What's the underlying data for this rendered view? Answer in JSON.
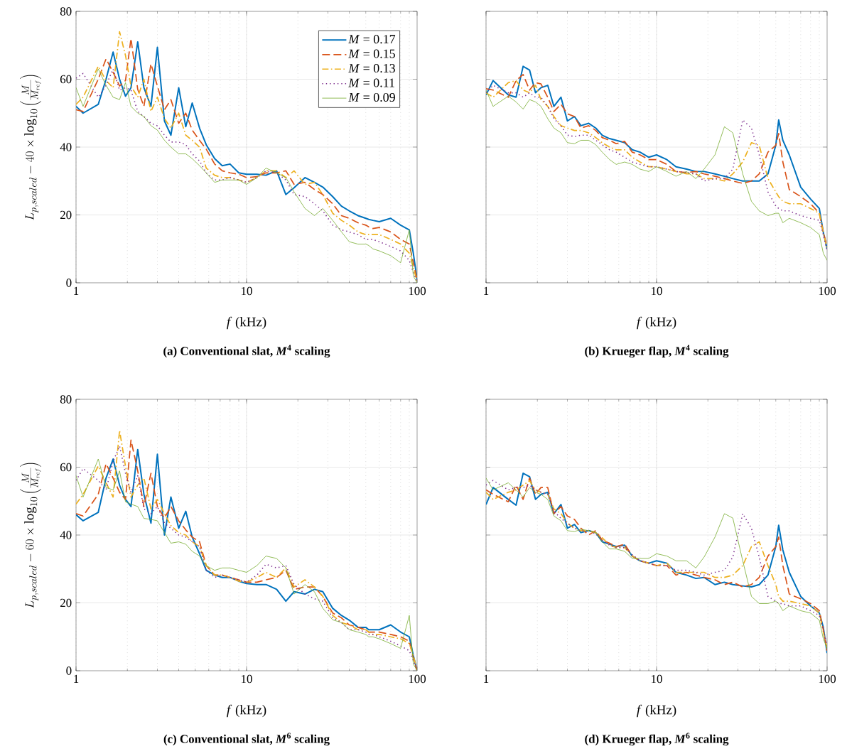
{
  "chart_data": [
    {
      "type": "line",
      "title": "(a) Conventional slat, *M*$^{4}$ scaling",
      "xlabel": "*f* (kHz)",
      "ylabel": "L_{p,scaled} - 40 \\times \\log_{10}\\left(\\frac{M}{M_{ref}}\\right)",
      "log": "x",
      "grid": true,
      "legend": "top right",
      "marker": "none",
      "xlim": [
        1,
        100
      ],
      "xticks": [
        1,
        10,
        100
      ],
      "ylim": [
        0,
        80
      ],
      "yticks": [
        0,
        20,
        40,
        60,
        80
      ],
      "x": [
        1,
        1.1,
        1.35,
        1.5,
        1.65,
        1.8,
        1.95,
        2.1,
        2.3,
        2.5,
        2.75,
        3,
        3.3,
        3.6,
        4,
        4.4,
        4.8,
        5.3,
        5.8,
        6.5,
        7.2,
        8,
        9,
        10,
        11.5,
        13,
        15,
        17,
        19,
        22,
        25,
        28,
        32,
        36,
        40,
        45,
        50,
        52,
        55,
        60,
        70,
        80,
        90,
        95,
        100
      ],
      "series": [
        {
          "name": "*M* = 0.17",
          "color": "#0072bd",
          "line_style": "solid",
          "values": [
            52,
            50,
            52.6,
            60,
            68,
            60,
            55,
            57.5,
            71,
            57.5,
            52,
            69.4,
            47.7,
            43.5,
            57.5,
            46,
            53,
            45.6,
            40.7,
            36.6,
            34.5,
            35,
            32.4,
            32,
            32,
            31.7,
            33,
            26,
            28,
            31,
            29.6,
            28.2,
            25.4,
            22.6,
            21.2,
            19.8,
            19,
            18.7,
            18.4,
            18,
            19,
            17,
            15.6,
            8.7,
            1
          ]
        },
        {
          "name": "*M* = 0.15",
          "color": "#d95319",
          "line_style": "dashed",
          "values": [
            51,
            50.5,
            60,
            66,
            62,
            58,
            59.6,
            72,
            57,
            52,
            64.5,
            58,
            51,
            54,
            47,
            50,
            45,
            42,
            39.4,
            35,
            33,
            32.4,
            32,
            31,
            31.3,
            32.4,
            32.4,
            33,
            29,
            29.6,
            27.5,
            26,
            23.3,
            19.8,
            19,
            17.7,
            17,
            16.5,
            16,
            16.3,
            15,
            12.8,
            11.4,
            5.9,
            1
          ]
        },
        {
          "name": "*M* = 0.13",
          "color": "#edb120",
          "line_style": "dashdot",
          "values": [
            52.6,
            54.7,
            63.8,
            59.6,
            57.5,
            74,
            67,
            58,
            54.7,
            60,
            50.5,
            54.7,
            48.4,
            45.6,
            50,
            43.5,
            42,
            40,
            33.8,
            31.7,
            31,
            31,
            30.3,
            29.6,
            31,
            33,
            33,
            31,
            33,
            29,
            29.6,
            26,
            20.5,
            18.4,
            17,
            15,
            14.2,
            14.2,
            14.2,
            14.2,
            12.8,
            11.4,
            8.7,
            4.5,
            0.3
          ]
        },
        {
          "name": "*M* = 0.11",
          "color": "#7e2f8e",
          "line_style": "dotted",
          "values": [
            60.3,
            61.7,
            54.7,
            58.2,
            63,
            56.8,
            57.5,
            56.8,
            50.5,
            49,
            47,
            46.3,
            43.5,
            41.5,
            41.5,
            40.7,
            38,
            35.9,
            32.4,
            30.3,
            30.3,
            31,
            30.3,
            29.6,
            31,
            33,
            32.4,
            30.3,
            26,
            25.4,
            23.3,
            21.2,
            17,
            15.6,
            15,
            14.2,
            12.8,
            12.8,
            12.8,
            12.1,
            10.7,
            9.4,
            6.6,
            3,
            0.3
          ]
        },
        {
          "name": "*M* = 0.09",
          "color": "#77ac30",
          "line_style": "solid",
          "values": [
            57.5,
            52,
            63,
            58.2,
            54.7,
            54,
            59,
            52,
            50,
            49,
            46.3,
            45,
            42,
            40,
            38,
            38,
            36.6,
            34.5,
            32.4,
            29.6,
            30.3,
            30.3,
            30.3,
            29,
            31,
            33.8,
            32.4,
            31,
            26.8,
            21.9,
            19.8,
            21.9,
            18.4,
            15,
            12.1,
            11.4,
            11.4,
            11,
            10,
            9.4,
            8,
            5.9,
            15.6,
            2,
            0
          ]
        }
      ]
    },
    {
      "type": "line",
      "title": "(b) Krueger flap, *M*$^{4}$ scaling",
      "xlabel": "*f* (kHz)",
      "log": "x",
      "grid": true,
      "marker": "none",
      "tick_labels": "x",
      "xlim": [
        1,
        100
      ],
      "xticks": [
        1,
        10,
        100
      ],
      "ylim": [
        0,
        80
      ],
      "yticks": [
        0,
        20,
        40,
        60,
        80
      ],
      "x": [
        1,
        1.1,
        1.35,
        1.5,
        1.65,
        1.8,
        1.95,
        2.1,
        2.3,
        2.5,
        2.75,
        3,
        3.3,
        3.6,
        4,
        4.4,
        4.8,
        5.3,
        5.8,
        6.5,
        7.2,
        8,
        9,
        10,
        11.5,
        13,
        15,
        17,
        19,
        22,
        25,
        28,
        32,
        36,
        40,
        45,
        50,
        52,
        55,
        60,
        70,
        80,
        90,
        95,
        100
      ],
      "series": [
        {
          "color": "#0072bd",
          "line_style": "solid",
          "values": [
            55.4,
            59.6,
            55.4,
            54.7,
            63.8,
            62.7,
            56,
            57.5,
            58.2,
            52,
            54.7,
            47.7,
            49,
            46.3,
            47,
            45.6,
            43.5,
            42.5,
            42,
            41.3,
            39.2,
            38.5,
            37,
            37.7,
            36.3,
            34.2,
            33.5,
            32.8,
            32.8,
            32.1,
            31.4,
            30.7,
            30,
            30,
            30,
            32.1,
            40.5,
            48,
            42,
            37.7,
            28.2,
            24.7,
            21.9,
            14.9,
            10
          ]
        },
        {
          "color": "#d95319",
          "line_style": "dashed",
          "values": [
            57.2,
            56.8,
            54.7,
            59.6,
            61.4,
            56.8,
            59,
            58.6,
            54.7,
            50.5,
            52.6,
            49.8,
            49,
            45.6,
            46.3,
            44.9,
            42.8,
            42,
            41,
            41.7,
            38.5,
            37.7,
            36.3,
            36.3,
            34.9,
            32.8,
            32.5,
            32.8,
            32.1,
            31.4,
            30.7,
            30,
            29.3,
            30,
            32.1,
            38.5,
            40.5,
            44,
            35.6,
            27.5,
            25.4,
            23.3,
            20.5,
            14.9,
            10.7
          ]
        },
        {
          "color": "#edb120",
          "line_style": "dashdot",
          "values": [
            56,
            54.7,
            59,
            59.6,
            56.8,
            56,
            58.2,
            54,
            52,
            49,
            46.3,
            45.6,
            44.9,
            44.9,
            44.2,
            42.8,
            41.3,
            40,
            39.2,
            39.2,
            37,
            35.6,
            34.2,
            34.2,
            33.5,
            32.8,
            32.1,
            32.1,
            30.7,
            30.7,
            30,
            32.1,
            35.6,
            41.3,
            40.5,
            30.7,
            26.8,
            25.4,
            24,
            23.3,
            23.3,
            21.9,
            20.5,
            14.9,
            10
          ]
        },
        {
          "color": "#7e2f8e",
          "line_style": "dotted",
          "values": [
            56,
            58.2,
            56,
            56,
            54.7,
            56,
            54.7,
            54.7,
            52,
            48.4,
            46.3,
            43.5,
            43.1,
            43.5,
            43.5,
            42,
            40.7,
            39.2,
            38.5,
            37,
            35.6,
            34.9,
            34.2,
            34.2,
            33.5,
            32.8,
            32.5,
            32.1,
            30,
            30.7,
            30.7,
            33.5,
            48,
            45.6,
            37.7,
            26.8,
            22.6,
            21.9,
            21.2,
            21.2,
            19.8,
            19,
            18.4,
            14.2,
            9.4
          ]
        },
        {
          "color": "#77ac30",
          "line_style": "solid",
          "values": [
            56.8,
            52,
            55,
            53.3,
            51.2,
            54,
            53.3,
            52,
            48.4,
            45.6,
            44.2,
            41.3,
            41,
            42,
            42,
            40.7,
            38.5,
            36.3,
            34.9,
            35.6,
            34.9,
            33.5,
            32.8,
            34.2,
            32.8,
            31.4,
            32.8,
            30.7,
            33.5,
            37.7,
            46,
            44.2,
            32.1,
            24,
            21.2,
            19.8,
            20.5,
            20.5,
            17.7,
            19,
            17.7,
            16.3,
            14.2,
            8.7,
            6.6
          ]
        }
      ]
    },
    {
      "type": "line",
      "title": "(c) Conventional slat, *M*$^{6}$ scaling",
      "xlabel": "*f* (kHz)",
      "ylabel": "L_{p,scaled} - 60 \\times \\log_{10}\\left(\\frac{M}{M_{ref}}\\right)",
      "log": "x",
      "grid": true,
      "marker": "none",
      "xlim": [
        1,
        100
      ],
      "xticks": [
        1,
        10,
        100
      ],
      "ylim": [
        0,
        80
      ],
      "yticks": [
        0,
        20,
        40,
        60,
        80
      ],
      "x": [
        1,
        1.1,
        1.35,
        1.5,
        1.65,
        1.8,
        1.95,
        2.1,
        2.3,
        2.5,
        2.75,
        3,
        3.3,
        3.6,
        4,
        4.4,
        4.8,
        5.3,
        5.8,
        6.5,
        7.2,
        8,
        9,
        10,
        11.5,
        13,
        15,
        17,
        19,
        22,
        25,
        28,
        32,
        36,
        40,
        45,
        50,
        52,
        55,
        60,
        70,
        80,
        90,
        95,
        100
      ],
      "series": [
        {
          "color": "#0072bd",
          "line_style": "solid",
          "values": [
            46,
            44.2,
            46.7,
            56.8,
            62.4,
            54.7,
            50.5,
            48.4,
            65.2,
            52,
            43.5,
            63.8,
            40,
            51.2,
            42,
            47,
            39.4,
            34.5,
            29.6,
            28.2,
            27.5,
            27.5,
            26.4,
            25.7,
            25.4,
            25.4,
            24,
            20.5,
            23.3,
            22.6,
            24,
            23.3,
            18.4,
            16.3,
            14.9,
            12.8,
            12.8,
            12.1,
            12.1,
            12.1,
            13.5,
            11.4,
            10,
            4.5,
            0
          ]
        },
        {
          "color": "#d95319",
          "line_style": "dashed",
          "values": [
            46.3,
            45.6,
            52,
            61,
            56.8,
            52.6,
            50.5,
            68,
            58.9,
            48.4,
            58.2,
            48.4,
            45,
            48.4,
            44.2,
            41.5,
            39.4,
            38,
            31,
            28.2,
            28.2,
            27.5,
            26.8,
            26.1,
            26.1,
            26.8,
            27.5,
            29.6,
            24,
            24.7,
            24.7,
            21.9,
            17,
            15.6,
            13.5,
            12.8,
            12.1,
            11.4,
            11.4,
            11.4,
            10.7,
            10,
            8.7,
            3.8,
            0
          ]
        },
        {
          "color": "#edb120",
          "line_style": "dashdot",
          "values": [
            49.1,
            52,
            60.3,
            55.4,
            51.2,
            70.8,
            60.3,
            51.2,
            54.7,
            56.8,
            47.7,
            50.5,
            46.3,
            42.8,
            40.7,
            40,
            38,
            36.6,
            31,
            28.2,
            28.2,
            27.5,
            26.4,
            26.1,
            27.5,
            29,
            27.5,
            30.3,
            24.7,
            26.8,
            24.7,
            21.9,
            16.3,
            14.2,
            13.5,
            12.1,
            12.1,
            11.4,
            10.7,
            10.7,
            10,
            9.4,
            8,
            4.5,
            0
          ]
        },
        {
          "color": "#7e2f8e",
          "line_style": "dotted",
          "values": [
            56.1,
            59.6,
            56.1,
            53.3,
            61.7,
            66.2,
            58.2,
            52.6,
            57.5,
            47.7,
            46.3,
            48.4,
            43.5,
            42,
            40,
            39.4,
            38,
            36.6,
            29.6,
            27.5,
            28.2,
            27.5,
            26.8,
            26.1,
            28.2,
            31.4,
            30.3,
            31,
            25.4,
            22.6,
            21.2,
            20.5,
            15.6,
            14.2,
            12.1,
            12.1,
            11.4,
            10.7,
            10.7,
            10,
            8.7,
            7.3,
            5.9,
            3.1,
            0
          ]
        },
        {
          "color": "#77ac30",
          "line_style": "solid",
          "values": [
            57.5,
            51.2,
            62.4,
            54,
            53.3,
            58.9,
            49.8,
            49.1,
            48.4,
            44.9,
            44.6,
            44.2,
            40.7,
            37.6,
            38,
            37.3,
            35.2,
            33.8,
            31,
            29.6,
            30.3,
            30.3,
            29.6,
            29,
            31,
            33.8,
            33.1,
            30.3,
            22.6,
            25.4,
            23.3,
            18.4,
            15,
            14.2,
            12.1,
            11.4,
            10.7,
            10,
            10,
            9.4,
            8,
            6.6,
            16.3,
            2,
            0
          ]
        }
      ]
    },
    {
      "type": "line",
      "title": "(d) Krueger flap, *M*$^{6}$ scaling",
      "xlabel": "*f* (kHz)",
      "log": "x",
      "grid": true,
      "marker": "none",
      "tick_labels": "x",
      "xlim": [
        1,
        100
      ],
      "xticks": [
        1,
        10,
        100
      ],
      "ylim": [
        0,
        80
      ],
      "yticks": [
        0,
        20,
        40,
        60,
        80
      ],
      "x": [
        1,
        1.1,
        1.35,
        1.5,
        1.65,
        1.8,
        1.95,
        2.1,
        2.3,
        2.5,
        2.75,
        3,
        3.3,
        3.6,
        4,
        4.4,
        4.8,
        5.3,
        5.8,
        6.5,
        7.2,
        8,
        9,
        10,
        11.5,
        13,
        15,
        17,
        19,
        22,
        25,
        28,
        32,
        36,
        40,
        45,
        50,
        52,
        55,
        60,
        70,
        80,
        90,
        95,
        100
      ],
      "series": [
        {
          "color": "#0072bd",
          "line_style": "solid",
          "values": [
            49,
            54,
            50.5,
            48.8,
            58.2,
            57.2,
            50.5,
            52,
            52.6,
            46.3,
            49,
            42,
            43.1,
            40.7,
            41.3,
            40.7,
            38,
            37.3,
            36.6,
            37,
            33.8,
            32.4,
            31.7,
            32.4,
            31.7,
            29,
            28.2,
            27.2,
            27.5,
            25.4,
            26.1,
            25.4,
            25,
            24.7,
            25.4,
            28.2,
            36.6,
            42.9,
            35.6,
            29,
            21.9,
            19.1,
            17,
            12.8,
            5.2
          ]
        },
        {
          "color": "#d95319",
          "line_style": "dashed",
          "values": [
            53.3,
            52,
            49.8,
            54.7,
            50.5,
            56.8,
            52,
            54,
            54,
            46.3,
            48.4,
            45.6,
            44.6,
            42,
            40,
            41.3,
            38.5,
            37.6,
            36.6,
            37.3,
            33.8,
            32.4,
            31.7,
            31,
            31,
            28.2,
            29,
            28.2,
            27.5,
            26.8,
            25.4,
            26.1,
            24.7,
            25.4,
            27.5,
            33.8,
            36.6,
            39.4,
            31,
            22.6,
            21.2,
            19.8,
            17.7,
            12.1,
            5.9
          ]
        },
        {
          "color": "#edb120",
          "line_style": "dashdot",
          "values": [
            52.6,
            50.5,
            52.6,
            53.3,
            54.7,
            56,
            53.3,
            52.6,
            52,
            47.7,
            46.3,
            43.5,
            42,
            41.3,
            41.3,
            40.7,
            39.2,
            37,
            36.3,
            36.3,
            33.8,
            32.4,
            31.7,
            31,
            31.7,
            29,
            29,
            29,
            29,
            27.5,
            27.5,
            28.2,
            31,
            36.6,
            38,
            31,
            25.4,
            21.9,
            20.5,
            20.5,
            19.8,
            19.1,
            17,
            11.4,
            6.6
          ]
        },
        {
          "color": "#7e2f8e",
          "line_style": "dotted",
          "values": [
            54.7,
            56.1,
            53.3,
            54,
            54,
            54.7,
            53.3,
            52.6,
            52,
            47,
            44.9,
            43.5,
            42,
            41.3,
            41.3,
            40.3,
            38.5,
            37,
            36.3,
            36.3,
            34.2,
            32.4,
            31.7,
            31,
            31,
            29.6,
            29.6,
            29,
            28.2,
            29,
            29.6,
            33.5,
            46.3,
            42,
            33.5,
            21.9,
            20.5,
            19.8,
            19.8,
            19.1,
            19.1,
            17.7,
            16.3,
            12.1,
            7.3
          ]
        },
        {
          "color": "#77ac30",
          "line_style": "solid",
          "values": [
            56.8,
            53.3,
            55.4,
            53.3,
            51.2,
            54,
            52.6,
            52,
            50.5,
            45.6,
            44.2,
            41.3,
            41,
            41.7,
            41.3,
            40.7,
            38,
            35.9,
            35.9,
            35.2,
            33.1,
            33.1,
            33.1,
            34.5,
            33.8,
            32.4,
            32.4,
            30.3,
            33.5,
            39.4,
            46.3,
            45,
            32.4,
            21.9,
            19.8,
            19.8,
            20.5,
            19.8,
            17.7,
            19.1,
            17.7,
            17,
            14.9,
            9.4,
            6.6
          ]
        }
      ]
    }
  ]
}
